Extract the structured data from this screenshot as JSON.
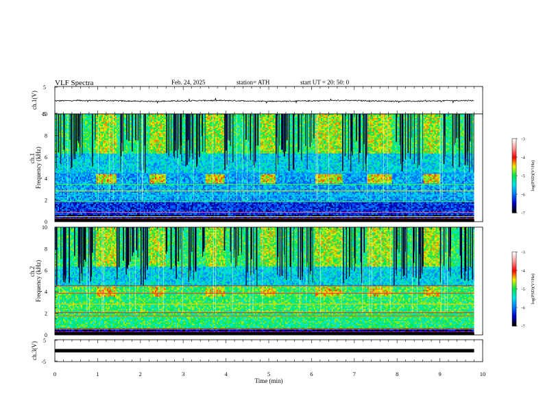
{
  "header": {
    "title": "VLF  Spectra",
    "date": "Feb. 24, 2025",
    "station": "station= ATH",
    "start": "start  UT  =    20: 50: 0"
  },
  "chart_data": {
    "type": "heatmap",
    "panels": [
      {
        "id": "ch1_wave",
        "type": "line",
        "ylabel": "ch.1(V)",
        "yticks": [
          "5",
          "-5"
        ],
        "ylim": [
          -5,
          5
        ]
      },
      {
        "id": "ch1_spec",
        "type": "heatmap",
        "ylabel_top": "ch.1",
        "ylabel": "Frequency  (kHz)",
        "yticks": [
          "0",
          "2",
          "4",
          "6",
          "8",
          "10"
        ],
        "ylim": [
          0,
          10
        ]
      },
      {
        "id": "ch2_spec",
        "type": "heatmap",
        "ylabel_top": "ch.2",
        "ylabel": "Frequency  (kHz)",
        "yticks": [
          "0",
          "2",
          "4",
          "6",
          "8",
          "10"
        ],
        "ylim": [
          0,
          10
        ]
      },
      {
        "id": "ch3_wave",
        "type": "line",
        "ylabel": "ch.3(V)",
        "yticks": [
          "5",
          "-5"
        ],
        "ylim": [
          -5,
          5
        ]
      }
    ],
    "xaxis": {
      "label": "Time  (min)",
      "ticks": [
        "0",
        "1",
        "2",
        "3",
        "4",
        "5",
        "6",
        "7",
        "8",
        "9",
        "10"
      ],
      "xlim": [
        0,
        10
      ]
    },
    "colorbar": {
      "label": "log(PSD)(V²/Hz)",
      "ticks": [
        "-3",
        "-4",
        "-5",
        "-6",
        "-7"
      ],
      "range": [
        -7,
        -3
      ],
      "colors": [
        "#000000",
        "#0000c8",
        "#0078ff",
        "#00e6e6",
        "#00e650",
        "#f0f000",
        "#ff0000",
        "#ff9696",
        "#ffffff"
      ]
    },
    "quiet_intervals_min": [
      [
        0.95,
        1.42
      ],
      [
        2.18,
        2.58
      ],
      [
        3.52,
        3.95
      ],
      [
        4.78,
        5.15
      ],
      [
        6.08,
        6.7
      ],
      [
        7.3,
        7.85
      ],
      [
        8.6,
        8.98
      ]
    ],
    "data_end_min": 9.8
  }
}
